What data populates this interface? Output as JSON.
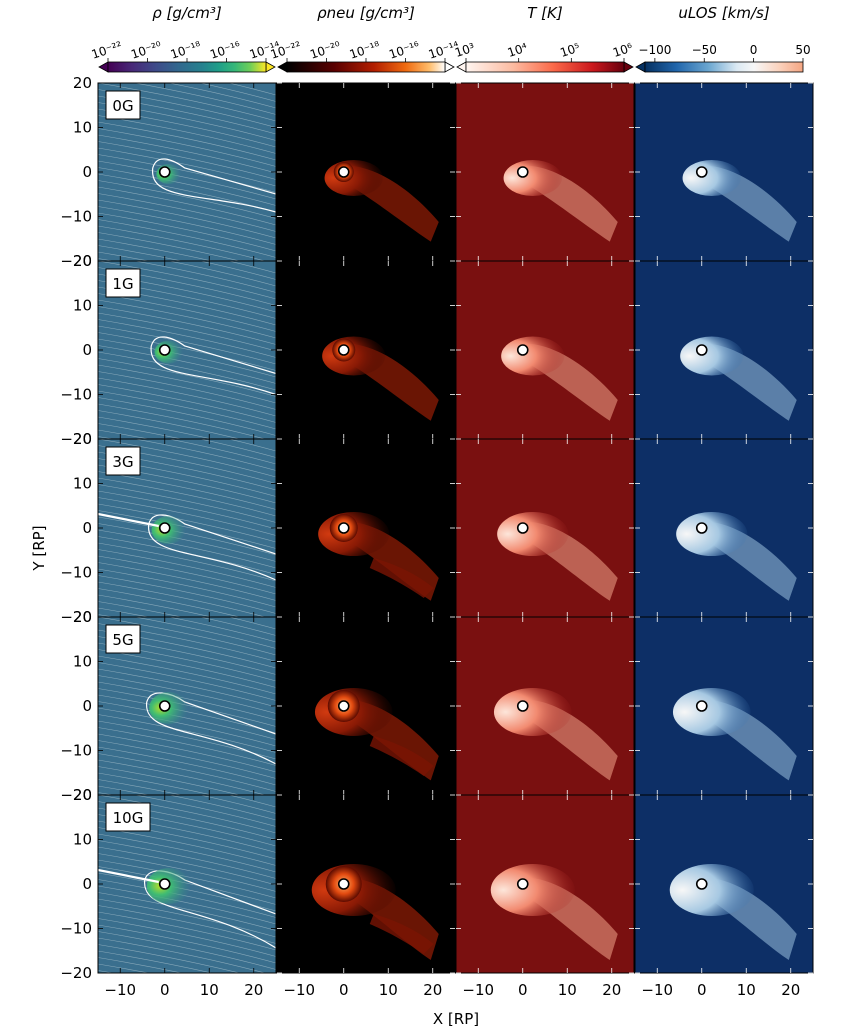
{
  "figure": {
    "colorbars": [
      {
        "label": "ρ [g/cm³]",
        "ticks": [
          "10⁻²²",
          "10⁻²⁰",
          "10⁻¹⁸",
          "10⁻¹⁶",
          "10⁻¹⁴"
        ],
        "log_min": -22,
        "log_max": -14,
        "colormap": "viridis",
        "extend": "both"
      },
      {
        "label": "ρneu [g/cm³]",
        "ticks": [
          "10⁻²²",
          "10⁻²⁰",
          "10⁻¹⁸",
          "10⁻¹⁶",
          "10⁻¹⁴"
        ],
        "log_min": -22,
        "log_max": -14,
        "colormap": "gist_heat",
        "extend": "both"
      },
      {
        "label": "T [K]",
        "ticks": [
          "10³",
          "10⁴",
          "10⁵",
          "10⁶"
        ],
        "log_min": 3,
        "log_max": 6,
        "colormap": "reds",
        "extend": "both"
      },
      {
        "label": "uLOS [km/s]",
        "ticks": [
          "−100",
          "−50",
          "0",
          "50"
        ],
        "min": -110,
        "max": 50,
        "colormap": "rdbu_r",
        "extend": "min"
      }
    ],
    "rows": [
      "0G",
      "1G",
      "3G",
      "5G",
      "10G"
    ],
    "x_ticks": [
      "−10",
      "0",
      "10",
      "20"
    ],
    "y_ticks": [
      "20",
      "10",
      "0",
      "−10",
      "−20"
    ],
    "xlabel": "X [RP]",
    "ylabel": "Y [RP]",
    "colors": {
      "density_bg": "#3a6f8e",
      "neutral_bg": "#000000",
      "temperature_bg": "#7a1010",
      "velocity_bg": "#0d2f66"
    }
  },
  "chart_data": {
    "type": "heatmap",
    "panels": [
      "density",
      "neutral density",
      "temperature",
      "line-of-sight velocity"
    ],
    "rows": [
      "0G",
      "1G",
      "3G",
      "5G",
      "10G"
    ],
    "xlim": [
      -15,
      25
    ],
    "ylim": [
      -20,
      20
    ],
    "x_ticks": [
      -10,
      0,
      10,
      20
    ],
    "y_ticks": [
      -20,
      -10,
      0,
      10,
      20
    ],
    "xlabel": "X [RP]",
    "ylabel": "Y [RP]",
    "planet_position": [
      0,
      0
    ]
  }
}
